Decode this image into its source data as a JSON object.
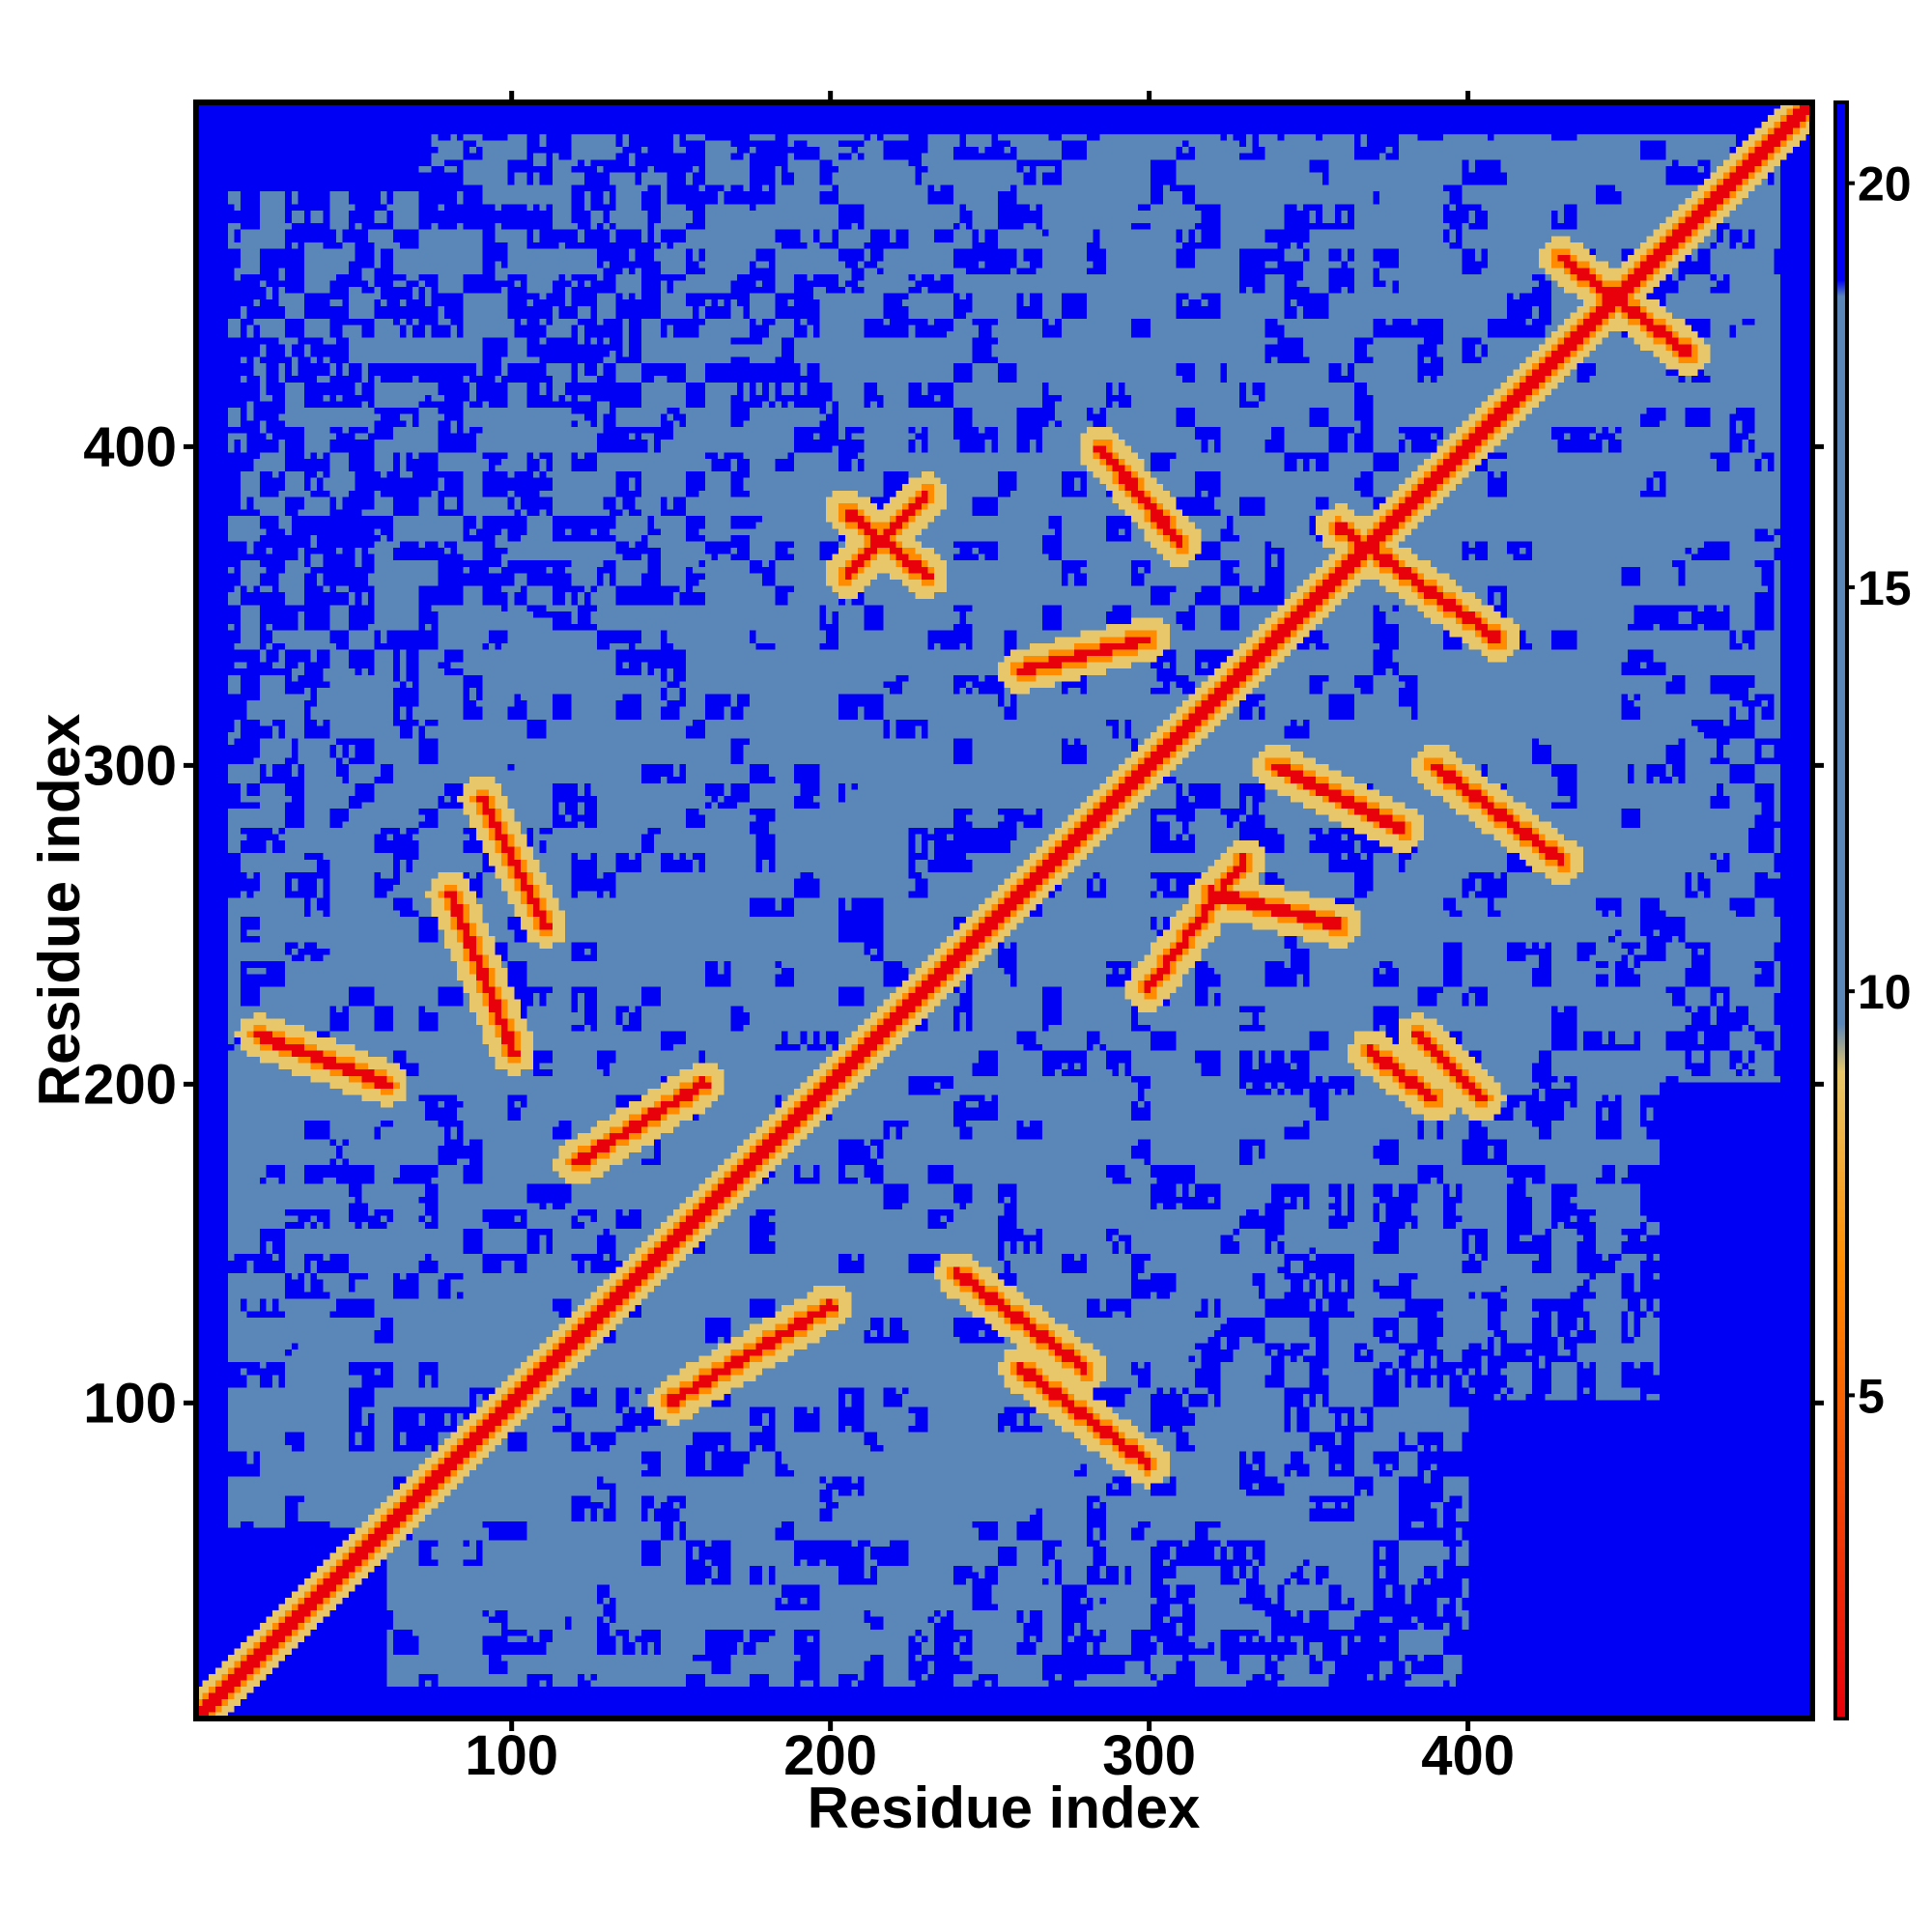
{
  "chart_data": {
    "type": "heatmap",
    "title": "",
    "xlabel": "Residue index",
    "ylabel": "Residue index",
    "n_residues": 508,
    "xlim": [
      1,
      508
    ],
    "ylim": [
      1,
      508
    ],
    "x_ticks": [
      100,
      200,
      300,
      400
    ],
    "y_ticks": [
      100,
      200,
      300,
      400
    ],
    "colorbar": {
      "ticks": [
        5,
        10,
        15,
        20
      ],
      "range": [
        1,
        21
      ],
      "colors": {
        "near": "#e8000b",
        "mid": "#ff8c00",
        "transition": "#e7c76a",
        "far": "#5b86b8",
        "very_far": "#0000f5"
      }
    },
    "features": {
      "diagonal": {
        "from": 1,
        "to": 508
      },
      "secondary_contacts": [
        [
          [
            205,
            380
          ],
          [
            230,
            360
          ]
        ],
        [
          [
            205,
            360
          ],
          [
            230,
            385
          ]
        ],
        [
          [
            260,
            110
          ],
          [
            300,
            80
          ]
        ],
        [
          [
            285,
            400
          ],
          [
            310,
            370
          ]
        ],
        [
          [
            360,
            375
          ],
          [
            410,
            340
          ]
        ],
        [
          [
            370,
            210
          ],
          [
            390,
            195
          ]
        ],
        [
          [
            385,
            215
          ],
          [
            405,
            195
          ]
        ],
        [
          [
            390,
            300
          ],
          [
            430,
            270
          ]
        ],
        [
          [
            430,
            460
          ],
          [
            470,
            430
          ]
        ],
        [
          [
            80,
            260
          ],
          [
            100,
            210
          ]
        ],
        [
          [
            120,
            175
          ],
          [
            160,
            200
          ]
        ],
        [
          [
            240,
            140
          ],
          [
            280,
            110
          ]
        ],
        [
          [
            300,
            230
          ],
          [
            330,
            270
          ]
        ],
        [
          [
            340,
            300
          ],
          [
            380,
            280
          ]
        ],
        [
          [
            90,
            290
          ],
          [
            110,
            250
          ]
        ],
        [
          [
            20,
            215
          ],
          [
            60,
            200
          ]
        ],
        [
          [
            150,
            100
          ],
          [
            200,
            130
          ]
        ],
        [
          [
            260,
            330
          ],
          [
            300,
            340
          ]
        ],
        [
          [
            320,
            260
          ],
          [
            360,
            250
          ]
        ]
      ],
      "blue_zones": [
        [
          [
            0,
            480
          ],
          [
            70,
            508
          ]
        ],
        [
          [
            0,
            0
          ],
          [
            60,
            60
          ]
        ],
        [
          [
            400,
            0
          ],
          [
            508,
            100
          ]
        ],
        [
          [
            460,
            100
          ],
          [
            508,
            200
          ]
        ]
      ]
    }
  }
}
